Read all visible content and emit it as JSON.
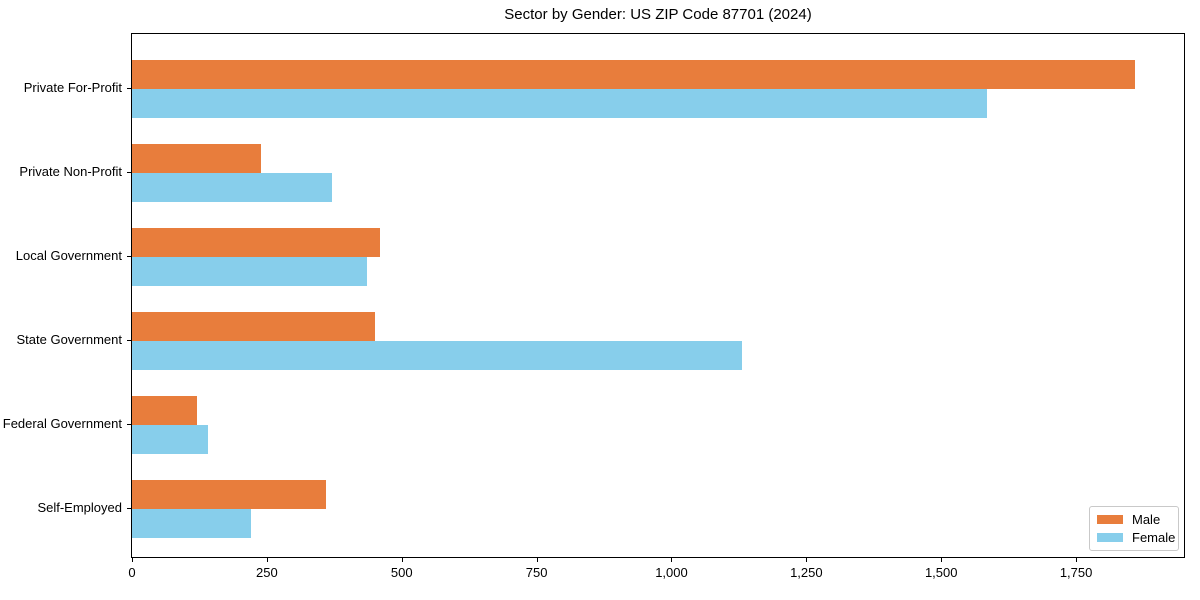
{
  "chart_data": {
    "type": "bar",
    "orientation": "horizontal",
    "title": "Sector by Gender: US ZIP Code 87701 (2024)",
    "categories": [
      "Private For-Profit",
      "Private Non-Profit",
      "Local Government",
      "State Government",
      "Federal Government",
      "Self-Employed"
    ],
    "series": [
      {
        "name": "Male",
        "color": "#e87d3c",
        "values": [
          1860,
          240,
          460,
          450,
          120,
          360
        ]
      },
      {
        "name": "Female",
        "color": "#87ceeb",
        "values": [
          1585,
          370,
          435,
          1130,
          140,
          220
        ]
      }
    ],
    "xlim": [
      0,
      1950
    ],
    "x_ticks": [
      0,
      250,
      500,
      750,
      1000,
      1250,
      1500,
      1750
    ],
    "x_tick_labels": [
      "0",
      "250",
      "500",
      "750",
      "1,000",
      "1,250",
      "1,500",
      "1,750"
    ],
    "xlabel": "",
    "ylabel": "",
    "grid": false,
    "legend_position": "lower right",
    "plot_border": "full-box"
  }
}
